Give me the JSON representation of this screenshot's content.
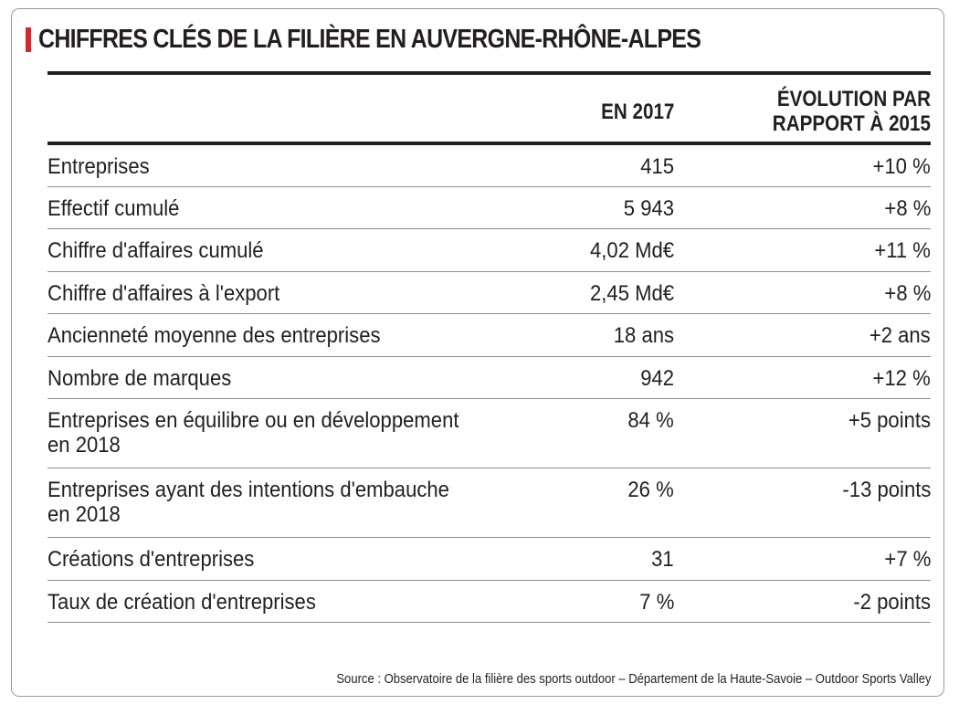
{
  "accent_color": "#d7262c",
  "title": "CHIFFRES CLÉS DE LA FILIÈRE EN AUVERGNE-RHÔNE-ALPES",
  "columns": {
    "year": "EN 2017",
    "evolution_line1": "ÉVOLUTION PAR",
    "evolution_line2": "RAPPORT À 2015"
  },
  "rows": [
    {
      "label": "Entreprises",
      "value": "415",
      "evolution": "+10 %"
    },
    {
      "label": "Effectif cumulé",
      "value": "5 943",
      "evolution": "+8 %"
    },
    {
      "label": "Chiffre d'affaires cumulé",
      "value": "4,02 Md€",
      "evolution": "+11 %"
    },
    {
      "label": "Chiffre d'affaires à l'export",
      "value": "2,45 Md€",
      "evolution": "+8 %"
    },
    {
      "label": "Ancienneté moyenne des entreprises",
      "value": "18 ans",
      "evolution": "+2 ans"
    },
    {
      "label": "Nombre de marques",
      "value": "942",
      "evolution": "+12 %"
    },
    {
      "label_line1": "Entreprises en équilibre ou en développement",
      "label_line2": "en 2018",
      "value": "84 %",
      "evolution": "+5 points"
    },
    {
      "label_line1": "Entreprises ayant des intentions d'embauche",
      "label_line2": "en 2018",
      "value": "26 %",
      "evolution": "-13 points"
    },
    {
      "label": "Créations d'entreprises",
      "value": "31",
      "evolution": "+7 %"
    },
    {
      "label": "Taux de création d'entreprises",
      "value": "7 %",
      "evolution": "-2 points"
    }
  ],
  "source": "Source : Observatoire de la filière des sports outdoor – Département de la Haute-Savoie – Outdoor Sports Valley"
}
